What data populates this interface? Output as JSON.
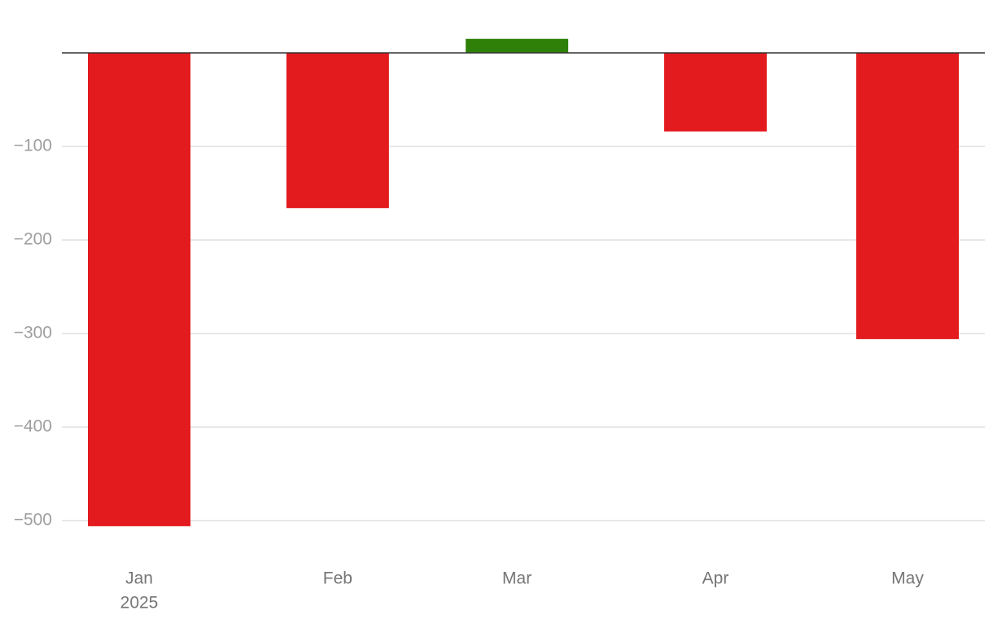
{
  "chart_data": {
    "type": "bar",
    "x": [
      "2025-01",
      "2025-02",
      "2025-03",
      "2025-04",
      "2025-05"
    ],
    "values": [
      -506,
      -166,
      15,
      -84,
      -306
    ],
    "positive_color": "#2e8008",
    "negative_color": "#e31b1e",
    "ylim": [
      -540,
      40
    ],
    "yticks": [
      {
        "value": -100,
        "label": "−100"
      },
      {
        "value": -200,
        "label": "−200"
      },
      {
        "value": -300,
        "label": "−300"
      },
      {
        "value": -400,
        "label": "−400"
      },
      {
        "value": -500,
        "label": "−500"
      }
    ],
    "xticks": [
      {
        "value": "2025-01",
        "label": [
          "Jan",
          "2025"
        ]
      },
      {
        "value": "2025-02",
        "label": [
          "Feb"
        ]
      },
      {
        "value": "2025-03",
        "label": [
          "Mar"
        ]
      },
      {
        "value": "2025-04",
        "label": [
          "Apr"
        ]
      },
      {
        "value": "2025-05",
        "label": [
          "May"
        ]
      }
    ],
    "grid": true
  }
}
